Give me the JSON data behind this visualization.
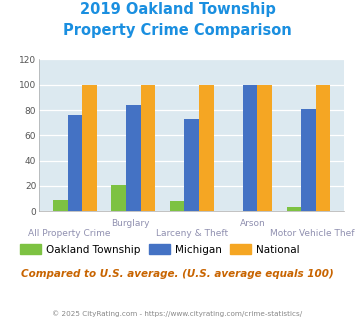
{
  "title_line1": "2019 Oakland Township",
  "title_line2": "Property Crime Comparison",
  "title_color": "#1a8fe0",
  "categories": [
    "All Property Crime",
    "Burglary",
    "Larceny & Theft",
    "Arson",
    "Motor Vehicle Theft"
  ],
  "category_labels_row1": [
    "",
    "Burglary",
    "",
    "Arson",
    ""
  ],
  "category_labels_row2": [
    "All Property Crime",
    "",
    "Larceny & Theft",
    "",
    "Motor Vehicle Theft"
  ],
  "oakland_values": [
    9,
    21,
    8,
    0,
    3
  ],
  "michigan_values": [
    76,
    84,
    73,
    100,
    81
  ],
  "national_values": [
    100,
    100,
    100,
    100,
    100
  ],
  "oakland_color": "#7dc242",
  "michigan_color": "#4472c4",
  "national_color": "#f5a623",
  "ylim": [
    0,
    120
  ],
  "yticks": [
    0,
    20,
    40,
    60,
    80,
    100,
    120
  ],
  "plot_bg_color": "#dce9f0",
  "grid_color": "#ffffff",
  "footnote": "Compared to U.S. average. (U.S. average equals 100)",
  "footnote_color": "#c86400",
  "copyright": "© 2025 CityRating.com - https://www.cityrating.com/crime-statistics/",
  "copyright_color": "#888888",
  "legend_labels": [
    "Oakland Township",
    "Michigan",
    "National"
  ],
  "xlabel_color": "#9090b0",
  "ytick_color": "#555555"
}
